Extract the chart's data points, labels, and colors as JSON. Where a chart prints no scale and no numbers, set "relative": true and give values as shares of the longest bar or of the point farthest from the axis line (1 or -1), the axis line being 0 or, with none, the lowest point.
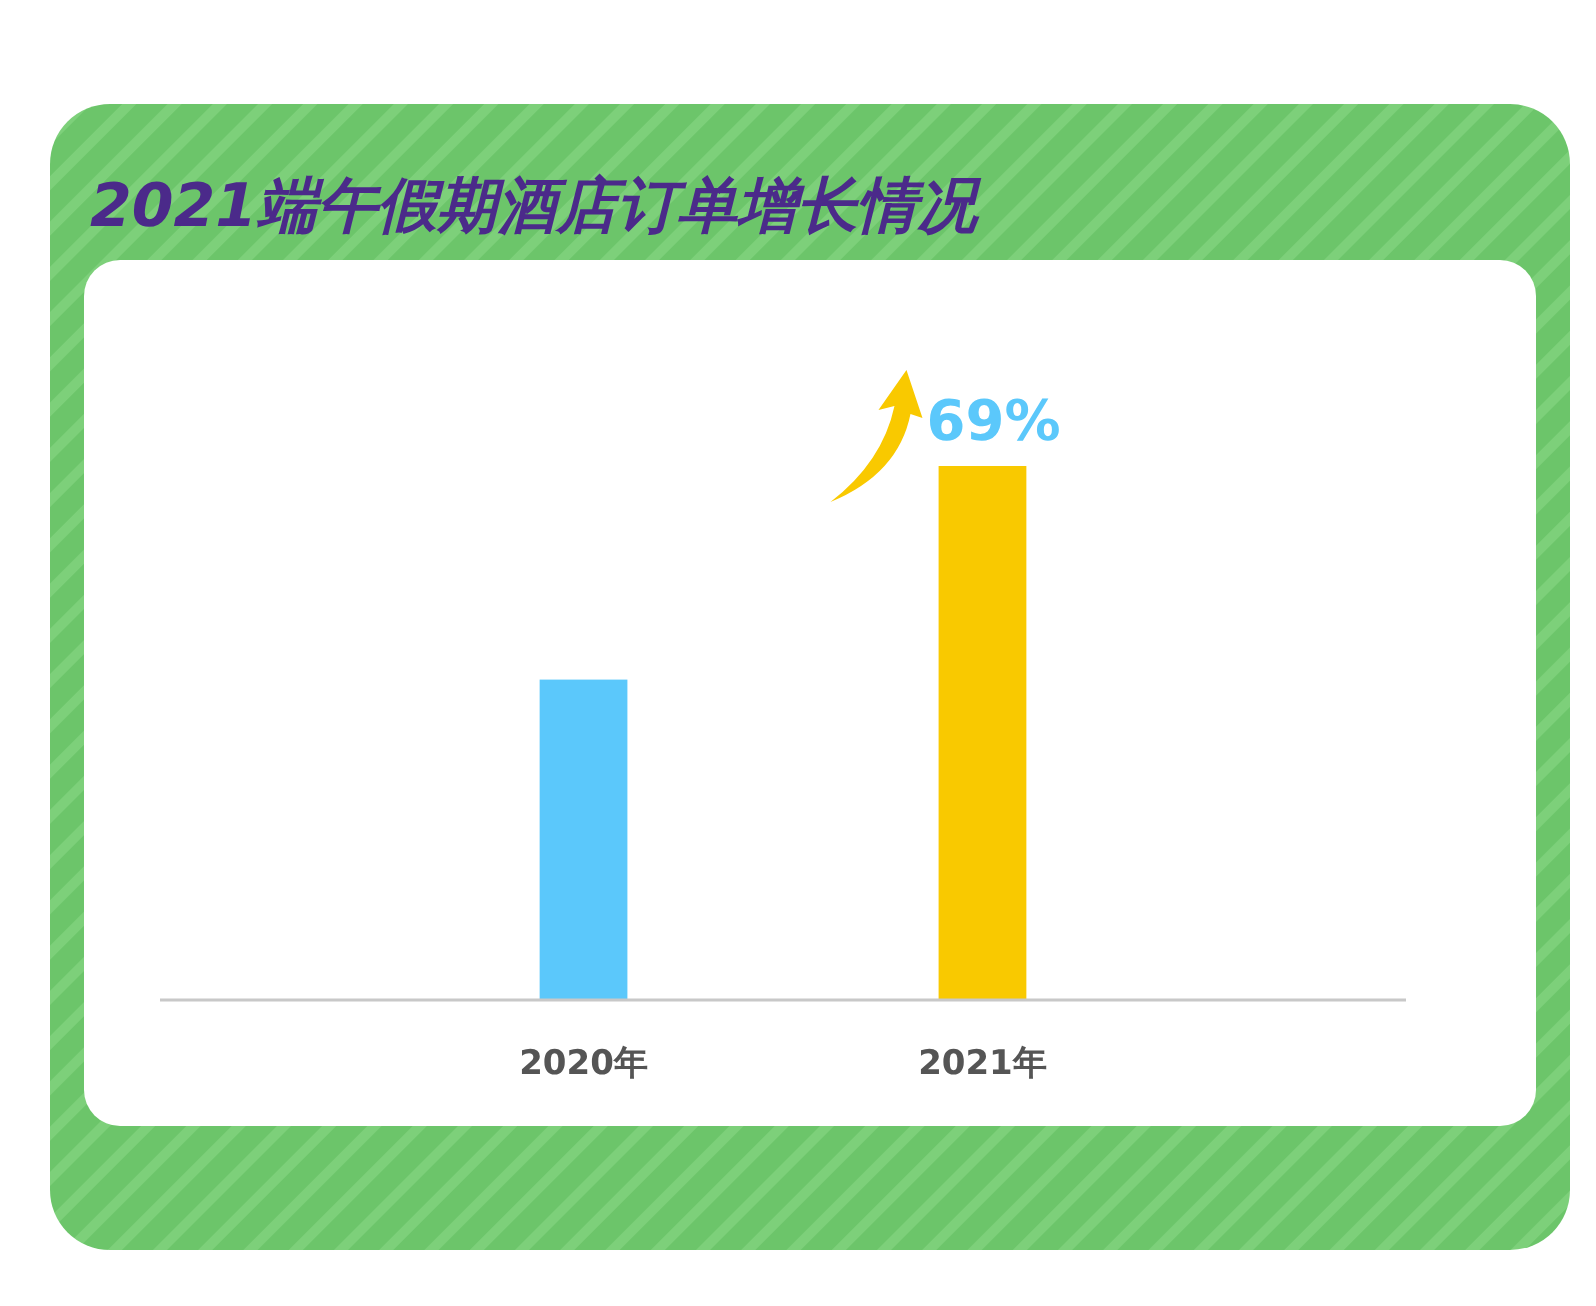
{
  "chart_data": {
    "type": "bar",
    "title": "2021端午假期酒店订单增长情况",
    "relative": true,
    "categories": [
      "2020年",
      "2021年"
    ],
    "values": [
      0.6,
      1
    ],
    "colors": [
      "#5bc8fb",
      "#f9c900"
    ],
    "annotations": [
      "69%"
    ]
  }
}
